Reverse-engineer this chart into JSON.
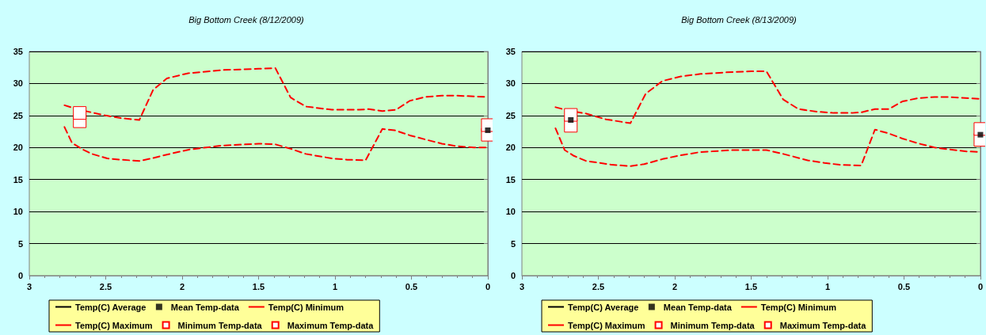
{
  "chart_data": [
    {
      "type": "line",
      "title": "Big Bottom Creek (8/12/2009)",
      "xlim": [
        3,
        0
      ],
      "xticks": [
        3,
        2.5,
        2,
        1.5,
        1,
        0.5,
        0
      ],
      "ylim": [
        0,
        35
      ],
      "yticks": [
        0,
        5,
        10,
        15,
        20,
        25,
        30,
        35
      ],
      "grid": "y",
      "legend": "bottom",
      "series": [
        {
          "name": "Temp(C) Average",
          "type": "line",
          "color": "#000000",
          "line_style": "solid",
          "marker": "none"
        },
        {
          "name": "Mean Temp-data",
          "type": "scatter",
          "color": "#000000",
          "marker": "square",
          "x": [
            0
          ],
          "values": [
            22.7
          ]
        },
        {
          "name": "Temp(C) Minimum",
          "type": "line",
          "color": "#ff0000",
          "line_style": "dashed",
          "marker": "none",
          "x": [
            2.77,
            2.72,
            2.65,
            2.59,
            2.49,
            2.4,
            2.28,
            2.2,
            2.1,
            1.95,
            1.74,
            1.5,
            1.39,
            1.29,
            1.19,
            1.02,
            0.92,
            0.8,
            0.69,
            0.61,
            0.51,
            0.4,
            0.3,
            0.2,
            0.09,
            0
          ],
          "values": [
            23.2,
            20.7,
            19.7,
            19.0,
            18.3,
            18.1,
            17.9,
            18.3,
            18.9,
            19.7,
            20.3,
            20.6,
            20.5,
            19.8,
            19.0,
            18.3,
            18.1,
            18.0,
            22.9,
            22.7,
            21.9,
            21.2,
            20.6,
            20.2,
            20.0,
            20.0
          ]
        },
        {
          "name": "Temp(C) Maximum",
          "type": "line",
          "color": "#ff0000",
          "line_style": "dashed",
          "marker": "none",
          "x": [
            2.77,
            2.69,
            2.5,
            2.4,
            2.28,
            2.19,
            2.1,
            1.96,
            1.74,
            1.5,
            1.39,
            1.29,
            1.19,
            1.02,
            0.84,
            0.78,
            0.69,
            0.6,
            0.51,
            0.41,
            0.3,
            0.2,
            0
          ],
          "values": [
            26.6,
            26.0,
            25.0,
            24.6,
            24.3,
            29.0,
            30.8,
            31.6,
            32.1,
            32.3,
            32.4,
            27.8,
            26.4,
            25.9,
            25.9,
            26.0,
            25.7,
            25.9,
            27.3,
            27.9,
            28.1,
            28.1,
            27.9
          ]
        },
        {
          "name": "Minimum Temp-data",
          "type": "scatter",
          "color": "#ff0000",
          "marker": "square",
          "x": [
            2.67,
            0
          ],
          "values": [
            24.1,
            22.0
          ]
        },
        {
          "name": "Maximum Temp-data",
          "type": "scatter",
          "color": "#ff0000",
          "marker": "square",
          "x": [
            2.67,
            0
          ],
          "values": [
            25.4,
            23.5
          ]
        }
      ]
    },
    {
      "type": "line",
      "title": "Big Bottom Creek (8/13/2009)",
      "xlim": [
        3,
        0
      ],
      "xticks": [
        3,
        2.5,
        2,
        1.5,
        1,
        0.5,
        0
      ],
      "ylim": [
        0,
        35
      ],
      "yticks": [
        0,
        5,
        10,
        15,
        20,
        25,
        30,
        35
      ],
      "grid": "y",
      "legend": "bottom",
      "series": [
        {
          "name": "Temp(C) Average",
          "type": "line",
          "color": "#000000",
          "line_style": "solid",
          "marker": "none"
        },
        {
          "name": "Mean Temp-data",
          "type": "scatter",
          "color": "#000000",
          "marker": "square",
          "x": [
            2.68,
            0
          ],
          "values": [
            24.3,
            22.0
          ]
        },
        {
          "name": "Temp(C) Minimum",
          "type": "line",
          "color": "#ff0000",
          "line_style": "dashed",
          "marker": "none",
          "x": [
            2.78,
            2.72,
            2.66,
            2.58,
            2.49,
            2.41,
            2.29,
            2.2,
            2.08,
            1.96,
            1.83,
            1.62,
            1.4,
            1.29,
            1.13,
            1.02,
            0.92,
            0.78,
            0.69,
            0.6,
            0.51,
            0.4,
            0.3,
            0.2,
            0.09,
            0
          ],
          "values": [
            23.0,
            19.6,
            18.7,
            17.9,
            17.6,
            17.3,
            17.1,
            17.4,
            18.2,
            18.8,
            19.3,
            19.6,
            19.6,
            19.0,
            18.0,
            17.6,
            17.3,
            17.2,
            22.8,
            22.2,
            21.4,
            20.6,
            20.0,
            19.7,
            19.4,
            19.3
          ]
        },
        {
          "name": "Temp(C) Maximum",
          "type": "line",
          "color": "#ff0000",
          "line_style": "dashed",
          "marker": "none",
          "x": [
            2.78,
            2.7,
            2.58,
            2.45,
            2.29,
            2.19,
            2.08,
            1.96,
            1.83,
            1.62,
            1.5,
            1.4,
            1.29,
            1.19,
            1.07,
            0.96,
            0.84,
            0.78,
            0.69,
            0.6,
            0.51,
            0.41,
            0.3,
            0.22,
            0
          ],
          "values": [
            26.3,
            25.8,
            25.3,
            24.4,
            23.8,
            28.4,
            30.4,
            31.1,
            31.5,
            31.8,
            31.9,
            31.9,
            27.5,
            26.0,
            25.6,
            25.4,
            25.4,
            25.5,
            26.0,
            26.0,
            27.2,
            27.7,
            27.9,
            27.9,
            27.6
          ]
        },
        {
          "name": "Minimum Temp-data",
          "type": "scatter",
          "color": "#ff0000",
          "marker": "square",
          "x": [
            2.68,
            0
          ],
          "values": [
            23.4,
            21.2
          ]
        },
        {
          "name": "Maximum Temp-data",
          "type": "scatter",
          "color": "#ff0000",
          "marker": "square",
          "x": [
            2.68,
            0
          ],
          "values": [
            25.1,
            22.9
          ]
        }
      ]
    }
  ]
}
